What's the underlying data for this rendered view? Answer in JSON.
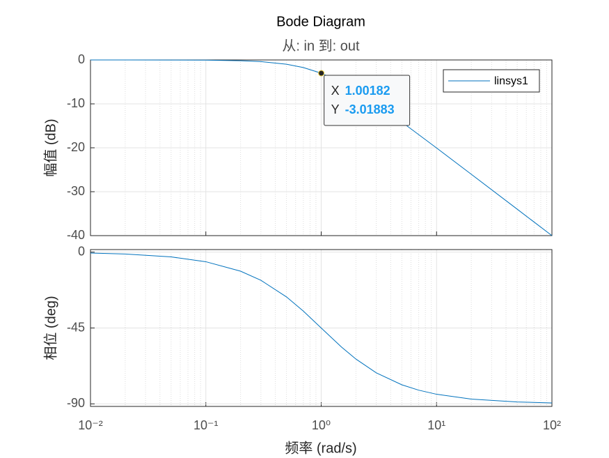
{
  "chart_data": [
    {
      "type": "line",
      "title": "Bode Diagram",
      "subtitle": "从: in  到: out",
      "ylabel": "幅值 (dB)",
      "x": [
        0.01,
        0.02,
        0.05,
        0.1,
        0.2,
        0.3,
        0.5,
        0.7,
        1,
        1.5,
        2,
        3,
        5,
        7,
        10,
        20,
        50,
        100
      ],
      "series": [
        {
          "name": "linsys1",
          "color": "#0072bd",
          "values": [
            0,
            -0.0017,
            -0.011,
            -0.043,
            -0.17,
            -0.374,
            -0.969,
            -1.73,
            -3.01,
            -5.12,
            -6.99,
            -10,
            -14.15,
            -17,
            -20.04,
            -26.03,
            -33.98,
            -40
          ]
        }
      ],
      "xscale": "log",
      "xlim": [
        0.01,
        100
      ],
      "xticks": [
        0.01,
        0.1,
        1,
        10,
        100
      ],
      "ylim": [
        -40,
        0
      ],
      "yticks": [
        -40,
        -30,
        -20,
        -10,
        0
      ],
      "grid": true,
      "legend": "upper right",
      "datatip": {
        "x": 1.00182,
        "y": -3.01883,
        "x_label": "X",
        "y_label": "Y"
      }
    },
    {
      "type": "line",
      "ylabel": "相位 (deg)",
      "xlabel": "频率  (rad/s)",
      "x": [
        0.01,
        0.02,
        0.05,
        0.1,
        0.2,
        0.3,
        0.5,
        0.7,
        1,
        1.5,
        2,
        3,
        5,
        7,
        10,
        20,
        50,
        100
      ],
      "series": [
        {
          "name": "linsys1",
          "color": "#0072bd",
          "values": [
            -0.57,
            -1.15,
            -2.86,
            -5.71,
            -11.31,
            -16.7,
            -26.57,
            -34.99,
            -45,
            -56.31,
            -63.43,
            -71.57,
            -78.69,
            -81.87,
            -84.29,
            -87.14,
            -88.85,
            -89.43
          ]
        }
      ],
      "xscale": "log",
      "xlim": [
        0.01,
        100
      ],
      "xticks": [
        {
          "value": 0.01,
          "label": "10⁻²"
        },
        {
          "value": 0.1,
          "label": "10⁻¹"
        },
        {
          "value": 1,
          "label": "10⁰"
        },
        {
          "value": 10,
          "label": "10¹"
        },
        {
          "value": 100,
          "label": "10²"
        }
      ],
      "ylim": [
        -91.5,
        1.5
      ],
      "yticks": [
        -90,
        -45,
        0
      ],
      "grid": true
    }
  ]
}
